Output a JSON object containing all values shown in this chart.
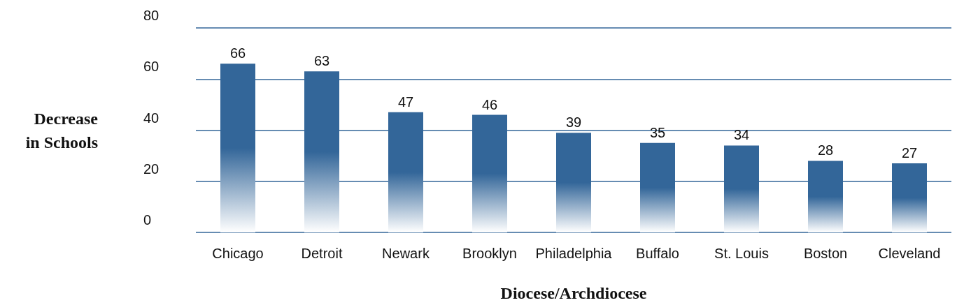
{
  "chart_data": {
    "type": "bar",
    "xlabel": "Diocese/Archdiocese",
    "ylabel": "Decrease\nin Schools",
    "categories": [
      "Chicago",
      "Detroit",
      "Newark",
      "Brooklyn",
      "Philadelphia",
      "Buffalo",
      "St. Louis",
      "Boston",
      "Cleveland"
    ],
    "values": [
      66,
      63,
      47,
      46,
      39,
      35,
      34,
      28,
      27
    ],
    "color": "#336699",
    "ylim": [
      0,
      80
    ],
    "yticks": [
      0,
      20,
      40,
      60,
      80
    ],
    "grid": "y",
    "data_labels": true
  }
}
